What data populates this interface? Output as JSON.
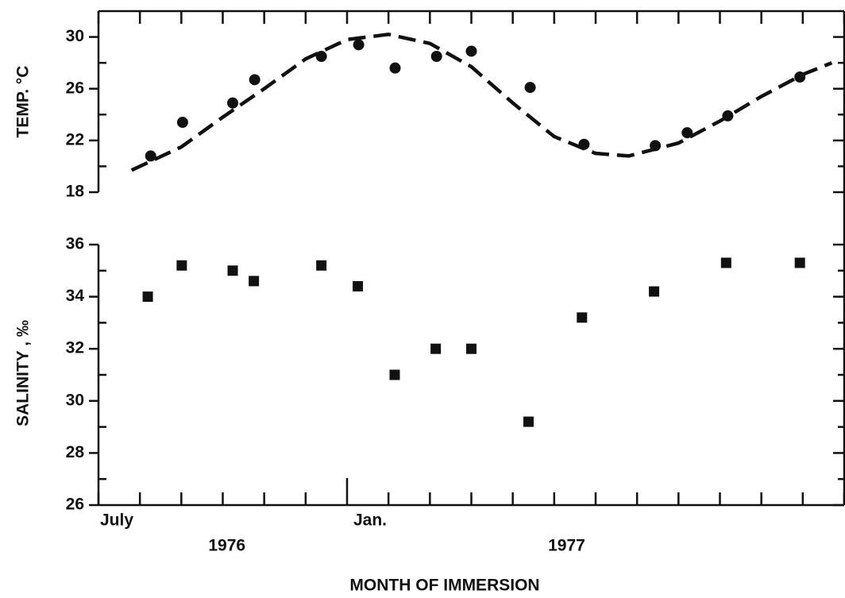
{
  "chart_data": [
    {
      "type": "scatter",
      "ylabel": "TEMP. °C",
      "xlim": [
        0,
        18
      ],
      "ylim": [
        18,
        32
      ],
      "yticks": [
        18,
        22,
        26,
        30
      ],
      "yminor": [
        20,
        24,
        28
      ],
      "series": [
        {
          "kind": "scatter",
          "marker": "circle",
          "color": "#111111",
          "x": [
            1.26,
            2.03,
            3.24,
            3.77,
            5.38,
            6.28,
            7.16,
            8.16,
            9.0,
            10.42,
            11.72,
            13.44,
            14.21,
            15.19,
            16.93
          ],
          "values": [
            20.8,
            23.4,
            24.9,
            26.7,
            28.5,
            29.4,
            27.6,
            28.5,
            28.9,
            26.1,
            21.7,
            21.6,
            22.6,
            23.9,
            26.9
          ]
        },
        {
          "kind": "line",
          "dashed": true,
          "color": "#111111",
          "x": [
            0.8,
            2,
            3,
            4,
            5,
            6,
            7,
            8,
            9,
            10,
            11,
            12,
            12.8,
            14,
            15,
            16,
            17,
            17.7
          ],
          "values": [
            19.7,
            21.5,
            23.8,
            26.0,
            28.3,
            29.8,
            30.2,
            29.5,
            27.7,
            24.9,
            22.3,
            21.0,
            20.8,
            21.8,
            23.5,
            25.4,
            27.1,
            28.0
          ]
        }
      ]
    },
    {
      "type": "scatter",
      "ylabel": "SALINITY , ‰",
      "xlabel": "MONTH OF IMMERSION",
      "xlim": [
        0,
        18
      ],
      "xticks": [
        0,
        1,
        2,
        3,
        4,
        5,
        6,
        7,
        8,
        9,
        10,
        11,
        12,
        13,
        14,
        15,
        16,
        17,
        18
      ],
      "x_labels": [
        {
          "value": 0,
          "label": "July"
        },
        {
          "value": 6,
          "label": "Jan."
        }
      ],
      "annotations": [
        {
          "x": 3.1,
          "text": "1976"
        },
        {
          "x": 11.3,
          "text": "1977"
        }
      ],
      "ylim": [
        26,
        36
      ],
      "yticks": [
        26,
        28,
        30,
        32,
        34,
        36
      ],
      "yminor": [
        27,
        29,
        31,
        33,
        35
      ],
      "series": [
        {
          "kind": "scatter",
          "marker": "square",
          "color": "#111111",
          "x": [
            1.19,
            2.01,
            3.24,
            3.75,
            5.38,
            6.26,
            7.15,
            8.14,
            9.0,
            10.38,
            11.67,
            13.41,
            15.15,
            16.93
          ],
          "values": [
            34.0,
            35.2,
            35.0,
            34.6,
            35.2,
            34.4,
            31.0,
            32.0,
            32.0,
            29.2,
            33.2,
            34.2,
            35.3,
            35.3
          ]
        }
      ]
    }
  ]
}
